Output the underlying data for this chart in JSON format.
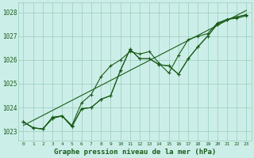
{
  "x": [
    0,
    1,
    2,
    3,
    4,
    5,
    6,
    7,
    8,
    9,
    10,
    11,
    12,
    13,
    14,
    15,
    16,
    17,
    18,
    19,
    20,
    21,
    22,
    23
  ],
  "line1": [
    1023.4,
    1023.15,
    1023.1,
    1023.55,
    1023.65,
    1023.2,
    1023.95,
    1024.0,
    1024.35,
    1024.5,
    1025.55,
    1026.45,
    1026.05,
    1026.05,
    1025.8,
    1025.75,
    1025.4,
    1026.05,
    1026.55,
    1027.0,
    1027.5,
    1027.7,
    1027.8,
    1027.9
  ],
  "line2": [
    1023.4,
    1023.15,
    1023.1,
    1023.6,
    1023.65,
    1023.25,
    1024.2,
    1024.55,
    1025.3,
    1025.75,
    1026.0,
    1026.35,
    1026.25,
    1026.35,
    1025.85,
    1025.45,
    1026.2,
    1026.85,
    1027.0,
    1027.1,
    1027.55,
    1027.7,
    1027.75,
    1027.85
  ],
  "line3": [
    1023.4,
    1023.15,
    1023.1,
    1023.55,
    1023.65,
    1023.2,
    1023.95,
    1024.0,
    1024.35,
    1024.5,
    1025.55,
    1026.45,
    1026.05,
    1026.05,
    1025.8,
    1025.75,
    1025.4,
    1026.05,
    1026.55,
    1027.0,
    1027.5,
    1027.7,
    1027.8,
    1027.9
  ],
  "line_straight": [
    1023.25,
    1023.46,
    1023.67,
    1023.88,
    1024.09,
    1024.3,
    1024.51,
    1024.72,
    1024.93,
    1025.14,
    1025.35,
    1025.56,
    1025.77,
    1025.98,
    1026.19,
    1026.4,
    1026.61,
    1026.82,
    1027.03,
    1027.24,
    1027.45,
    1027.66,
    1027.87,
    1028.08
  ],
  "ylim": [
    1022.6,
    1028.4
  ],
  "yticks": [
    1023,
    1024,
    1025,
    1026,
    1027,
    1028
  ],
  "xticks": [
    0,
    1,
    2,
    3,
    4,
    5,
    6,
    7,
    8,
    9,
    10,
    11,
    12,
    13,
    14,
    15,
    16,
    17,
    18,
    19,
    20,
    21,
    22,
    23
  ],
  "line_color": "#1a5c1a",
  "bg_color": "#cceee8",
  "grid_color": "#99ccbb",
  "xlabel": "Graphe pression niveau de la mer (hPa)",
  "xlabel_color": "#1a5c1a",
  "tick_color": "#1a5c1a",
  "marker": "+",
  "markersize": 3,
  "linewidth": 0.8
}
